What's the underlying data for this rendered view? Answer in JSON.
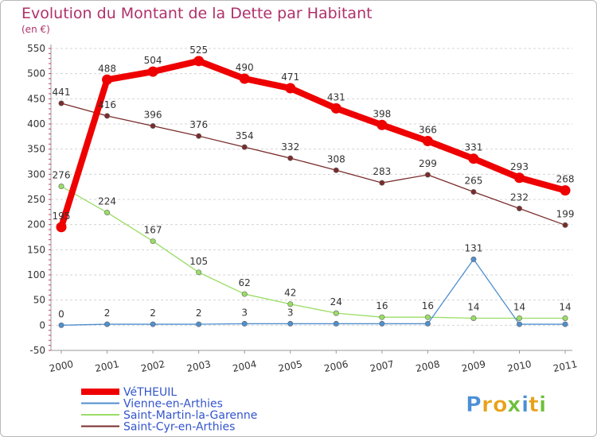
{
  "chart_data": {
    "type": "line",
    "title": "Evolution du Montant de la Dette par Habitant",
    "subtitle": "(en €)",
    "categories": [
      "2000",
      "2001",
      "2002",
      "2003",
      "2004",
      "2005",
      "2006",
      "2007",
      "2008",
      "2009",
      "2010",
      "2011"
    ],
    "ylim": [
      -50,
      550
    ],
    "yticks": [
      -50,
      0,
      50,
      100,
      150,
      200,
      250,
      300,
      350,
      400,
      450,
      500,
      550
    ],
    "grid": true,
    "legend_position": "bottom-left",
    "series": [
      {
        "name": "VéTHEUIL",
        "color": "#ee0000",
        "values": [
          195,
          488,
          504,
          525,
          490,
          471,
          431,
          398,
          366,
          331,
          293,
          268
        ]
      },
      {
        "name": "Vienne-en-Arthies",
        "color": "#4f8fce",
        "values": [
          0,
          2,
          2,
          2,
          3,
          3,
          3,
          3,
          3,
          131,
          2,
          2
        ],
        "labels": [
          "0",
          "2",
          "2",
          "2",
          "3",
          "3",
          "",
          "",
          "",
          "131",
          "",
          ""
        ]
      },
      {
        "name": "Saint-Martin-la-Garenne",
        "color": "#99dd66",
        "values": [
          276,
          224,
          167,
          105,
          62,
          42,
          24,
          16,
          16,
          14,
          14,
          14
        ]
      },
      {
        "name": "Saint-Cyr-en-Arthies",
        "color": "#7a2c2c",
        "values": [
          441,
          416,
          396,
          376,
          354,
          332,
          308,
          283,
          299,
          265,
          232,
          199
        ]
      }
    ]
  },
  "logo": {
    "text": "Proxiti"
  }
}
